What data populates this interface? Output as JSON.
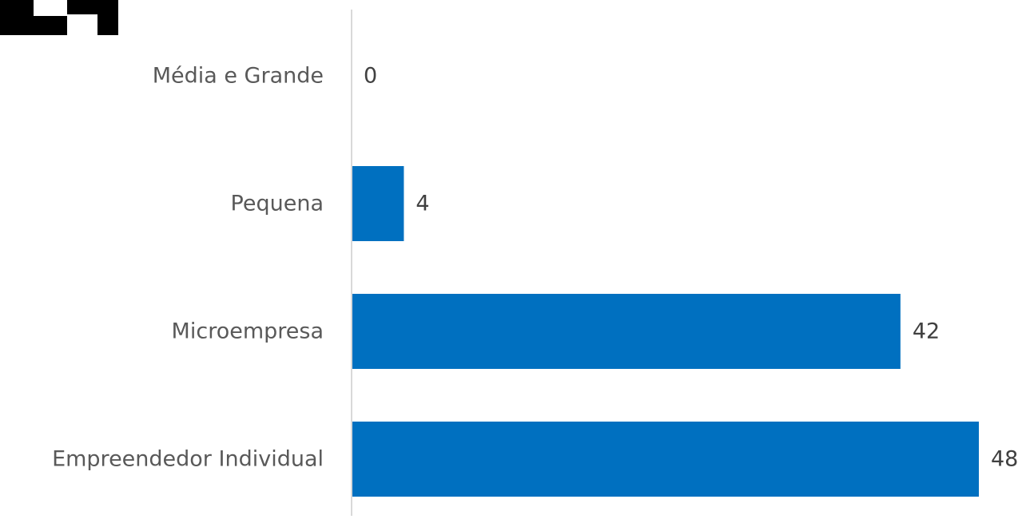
{
  "chart_data": {
    "type": "bar",
    "orientation": "horizontal",
    "categories": [
      "Média e Grande",
      "Pequena",
      "Microempresa",
      "Empreendedor Individual"
    ],
    "values": [
      0,
      4,
      42,
      48
    ],
    "data_labels": [
      "0",
      "4",
      "42",
      "48"
    ],
    "title": "",
    "xlabel": "",
    "ylabel": "",
    "xlim": [
      0,
      48
    ],
    "grid": false,
    "legend": "none",
    "bar_color": "#0070C0"
  },
  "colors": {
    "bar": "#0070C0",
    "axis": "#D9D9D9",
    "category_text": "#595959",
    "value_text": "#404040",
    "corner_mark": "#000000"
  }
}
